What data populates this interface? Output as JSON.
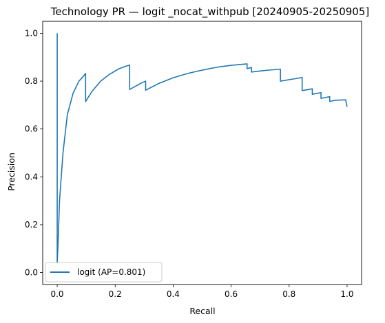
{
  "chart_data": {
    "type": "line",
    "title": "Technology PR — logit _nocat_withpub [20240905-20250905]",
    "xlabel": "Recall",
    "ylabel": "Precision",
    "xlim": [
      -0.05,
      1.05
    ],
    "ylim": [
      -0.05,
      1.05
    ],
    "xticks": [
      0.0,
      0.2,
      0.4,
      0.6,
      0.8,
      1.0
    ],
    "xtick_labels": [
      "0.0",
      "0.2",
      "0.4",
      "0.6",
      "0.8",
      "1.0"
    ],
    "yticks": [
      0.0,
      0.2,
      0.4,
      0.6,
      0.8,
      1.0
    ],
    "ytick_labels": [
      "0.0",
      "0.2",
      "0.4",
      "0.6",
      "0.8",
      "1.0"
    ],
    "grid": false,
    "legend": {
      "position": "lower-left"
    },
    "series": [
      {
        "name": "logit (AP=0.801)",
        "color": "#1f77b4",
        "x": [
          0.0,
          0.0,
          0.003,
          0.008,
          0.02,
          0.035,
          0.055,
          0.075,
          0.09,
          0.098,
          0.098,
          0.12,
          0.15,
          0.18,
          0.21,
          0.235,
          0.25,
          0.25,
          0.29,
          0.305,
          0.305,
          0.35,
          0.4,
          0.45,
          0.5,
          0.55,
          0.6,
          0.655,
          0.655,
          0.67,
          0.67,
          0.72,
          0.77,
          0.77,
          0.81,
          0.845,
          0.845,
          0.88,
          0.88,
          0.91,
          0.91,
          0.94,
          0.94,
          0.96,
          0.96,
          0.995,
          1.0
        ],
        "y": [
          1.0,
          0.04,
          0.12,
          0.3,
          0.5,
          0.66,
          0.75,
          0.8,
          0.82,
          0.832,
          0.715,
          0.757,
          0.8,
          0.828,
          0.85,
          0.862,
          0.867,
          0.765,
          0.792,
          0.8,
          0.762,
          0.79,
          0.814,
          0.832,
          0.846,
          0.858,
          0.866,
          0.872,
          0.852,
          0.857,
          0.838,
          0.845,
          0.85,
          0.8,
          0.808,
          0.815,
          0.76,
          0.768,
          0.745,
          0.752,
          0.728,
          0.735,
          0.715,
          0.72,
          0.72,
          0.722,
          0.693
        ]
      }
    ]
  }
}
